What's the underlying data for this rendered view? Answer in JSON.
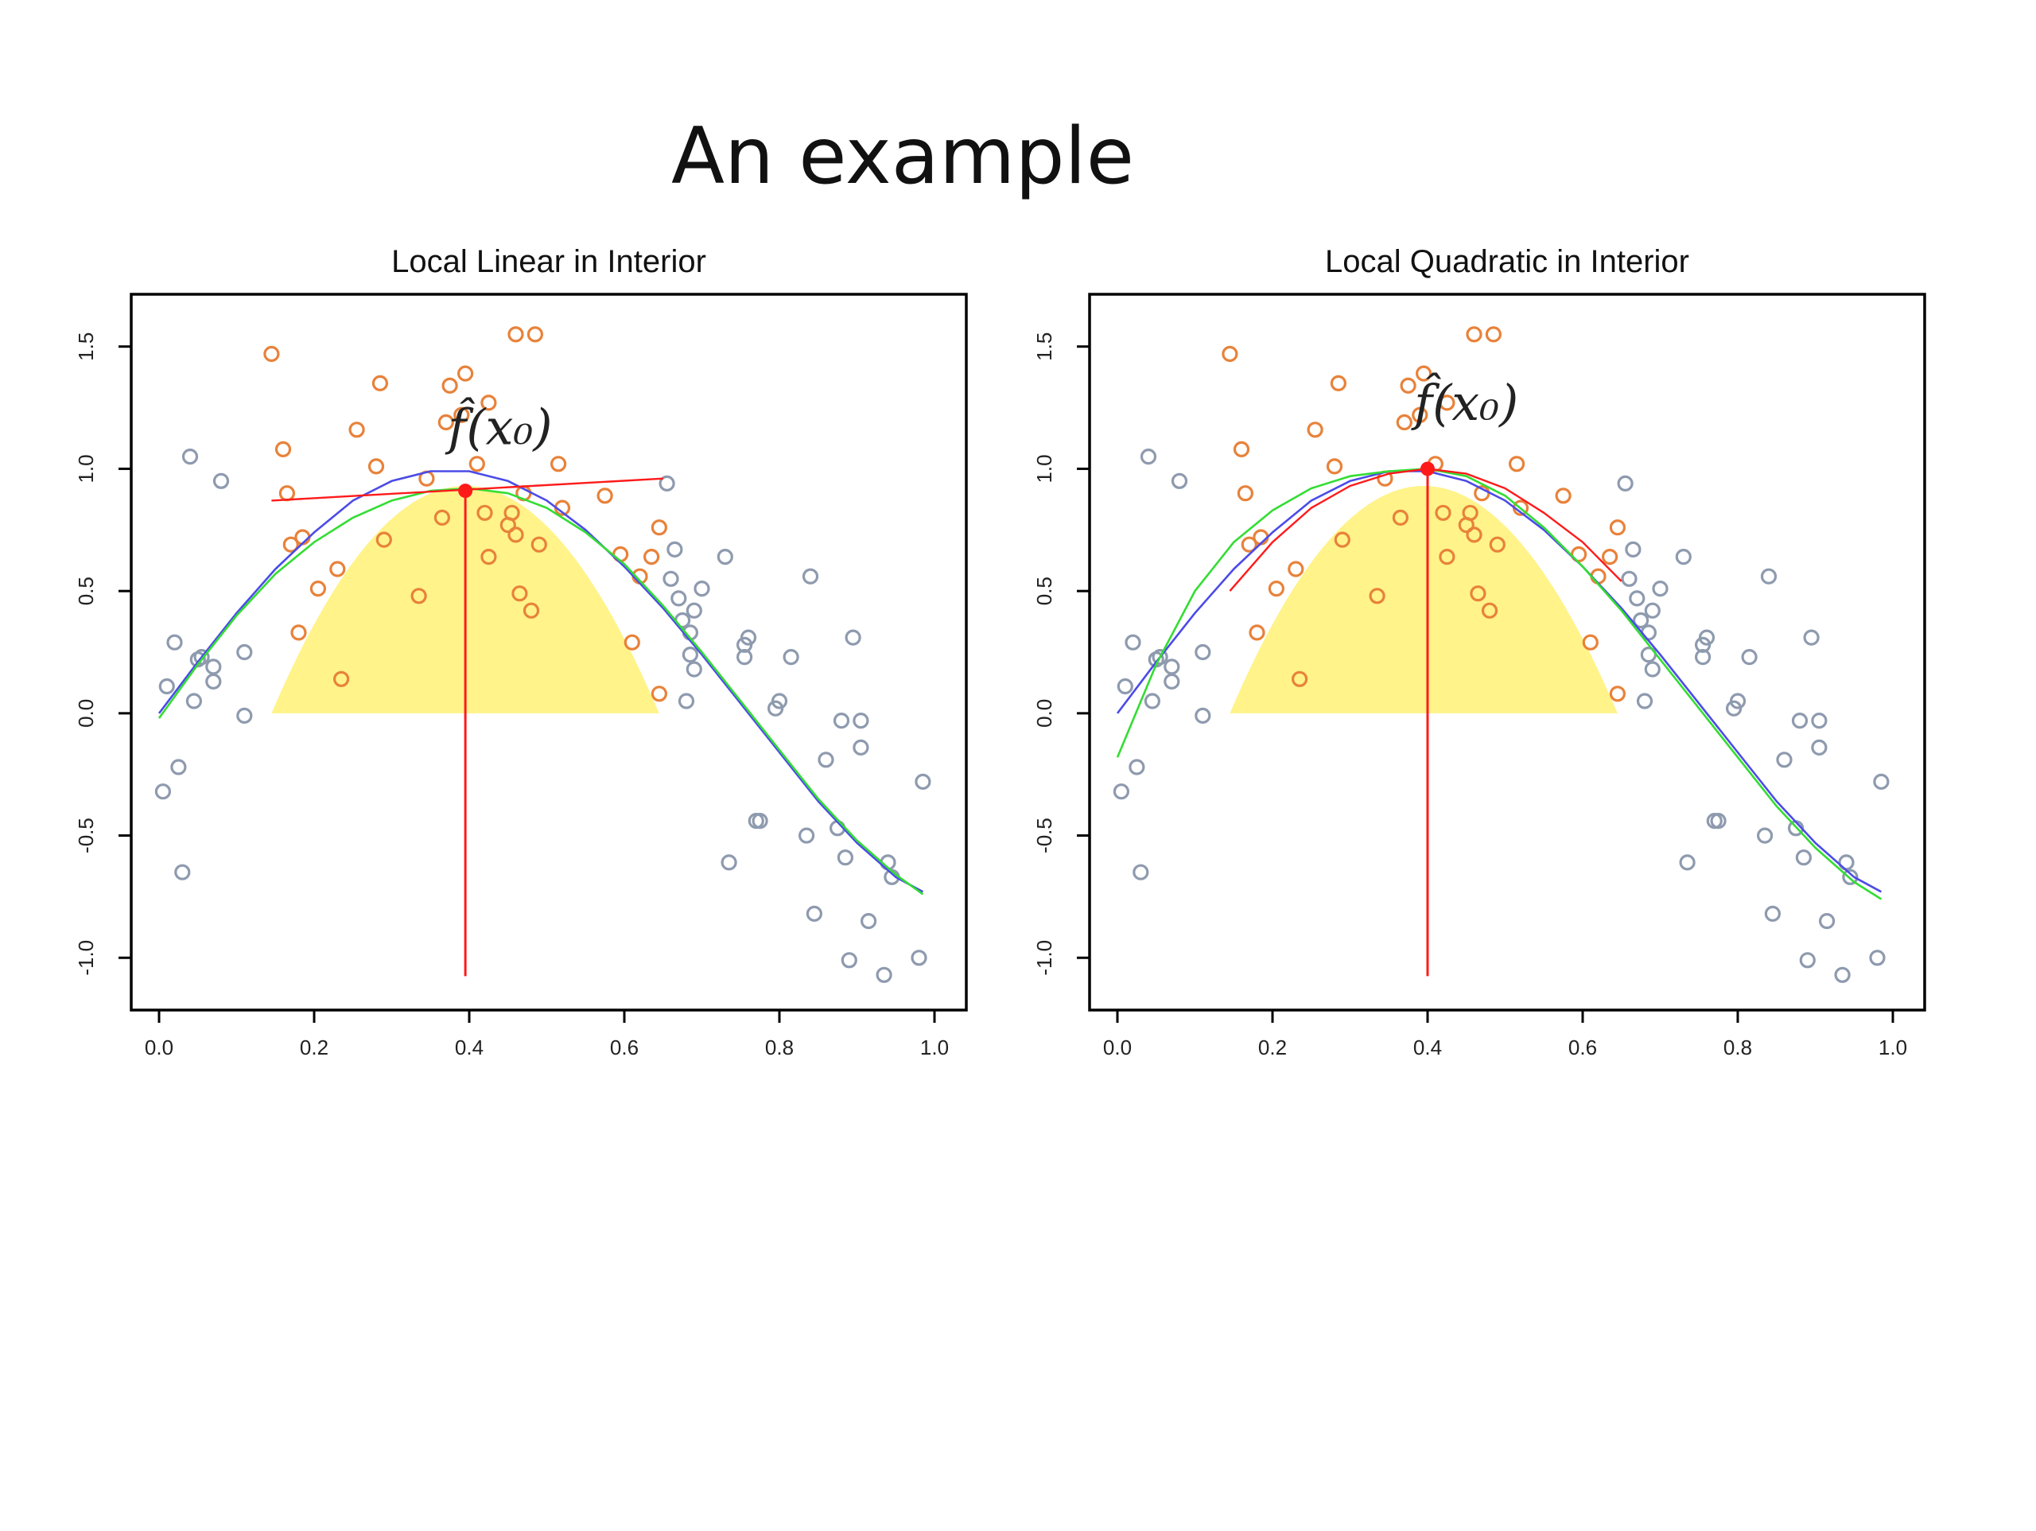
{
  "slide": {
    "title": "An example"
  },
  "colors": {
    "inside_points": "#E8823A",
    "outside_points": "#8E9AAE",
    "true_curve": "#4B4BE8",
    "fitted_curve": "#33DD33",
    "kernel_fill": "#FFF38A",
    "local_fit": "#FF1A1A"
  },
  "chart_data": [
    {
      "type": "scatter",
      "title": "Local Linear in Interior",
      "xlabel": "",
      "ylabel": "",
      "xlim": [
        0,
        1
      ],
      "ylim": [
        -1.1,
        1.6
      ],
      "xticks": [
        "0.0",
        "0.2",
        "0.4",
        "0.6",
        "0.8",
        "1.0"
      ],
      "yticks": [
        "-1.0",
        "-0.5",
        "0.0",
        "0.5",
        "1.0",
        "1.5"
      ],
      "annotation": {
        "text": "f̂(x₀)",
        "x": 0.44,
        "y": 1.1
      },
      "target": {
        "x": 0.395,
        "y": 0.91
      },
      "kernel_window": {
        "x": [
          0.145,
          0.645
        ],
        "peak": 0.93
      },
      "local_fit": {
        "type": "line",
        "x": [
          0.145,
          0.65
        ],
        "y": [
          0.87,
          0.96
        ]
      },
      "true_curve": {
        "x": [
          0.0,
          0.05,
          0.1,
          0.15,
          0.2,
          0.25,
          0.3,
          0.35,
          0.4,
          0.45,
          0.5,
          0.55,
          0.6,
          0.65,
          0.7,
          0.75,
          0.8,
          0.85,
          0.9,
          0.95,
          0.985
        ],
        "y": [
          0.0,
          0.21,
          0.41,
          0.59,
          0.74,
          0.87,
          0.95,
          0.99,
          0.99,
          0.95,
          0.87,
          0.75,
          0.6,
          0.43,
          0.24,
          0.04,
          -0.16,
          -0.36,
          -0.53,
          -0.67,
          -0.73
        ]
      },
      "fitted_curve": {
        "x": [
          0.0,
          0.05,
          0.1,
          0.15,
          0.2,
          0.25,
          0.3,
          0.35,
          0.4,
          0.45,
          0.5,
          0.55,
          0.6,
          0.65,
          0.7,
          0.75,
          0.8,
          0.85,
          0.9,
          0.95,
          0.985
        ],
        "y": [
          -0.02,
          0.2,
          0.4,
          0.57,
          0.7,
          0.8,
          0.87,
          0.91,
          0.92,
          0.9,
          0.84,
          0.74,
          0.61,
          0.44,
          0.25,
          0.05,
          -0.15,
          -0.35,
          -0.52,
          -0.66,
          -0.74
        ]
      },
      "points_inside": [
        [
          0.145,
          1.47
        ],
        [
          0.16,
          1.08
        ],
        [
          0.165,
          0.9
        ],
        [
          0.17,
          0.69
        ],
        [
          0.18,
          0.33
        ],
        [
          0.185,
          0.72
        ],
        [
          0.205,
          0.51
        ],
        [
          0.23,
          0.59
        ],
        [
          0.235,
          0.14
        ],
        [
          0.255,
          1.16
        ],
        [
          0.28,
          1.01
        ],
        [
          0.285,
          1.35
        ],
        [
          0.29,
          0.71
        ],
        [
          0.335,
          0.48
        ],
        [
          0.345,
          0.96
        ],
        [
          0.365,
          0.8
        ],
        [
          0.37,
          1.19
        ],
        [
          0.375,
          1.34
        ],
        [
          0.39,
          1.22
        ],
        [
          0.395,
          1.39
        ],
        [
          0.41,
          1.02
        ],
        [
          0.42,
          0.82
        ],
        [
          0.425,
          1.27
        ],
        [
          0.425,
          0.64
        ],
        [
          0.45,
          0.77
        ],
        [
          0.455,
          0.82
        ],
        [
          0.46,
          1.55
        ],
        [
          0.46,
          0.73
        ],
        [
          0.465,
          0.49
        ],
        [
          0.47,
          0.9
        ],
        [
          0.48,
          0.42
        ],
        [
          0.485,
          1.55
        ],
        [
          0.49,
          0.69
        ],
        [
          0.515,
          1.02
        ],
        [
          0.52,
          0.84
        ],
        [
          0.575,
          0.89
        ],
        [
          0.595,
          0.65
        ],
        [
          0.61,
          0.29
        ],
        [
          0.62,
          0.56
        ],
        [
          0.635,
          0.64
        ],
        [
          0.645,
          0.76
        ],
        [
          0.645,
          0.08
        ]
      ],
      "points_outside": [
        [
          0.005,
          -0.32
        ],
        [
          0.01,
          0.11
        ],
        [
          0.02,
          0.29
        ],
        [
          0.025,
          -0.22
        ],
        [
          0.03,
          -0.65
        ],
        [
          0.04,
          1.05
        ],
        [
          0.045,
          0.05
        ],
        [
          0.05,
          0.22
        ],
        [
          0.055,
          0.23
        ],
        [
          0.07,
          0.19
        ],
        [
          0.07,
          0.13
        ],
        [
          0.08,
          0.95
        ],
        [
          0.11,
          -0.01
        ],
        [
          0.11,
          0.25
        ],
        [
          0.655,
          0.94
        ],
        [
          0.66,
          0.55
        ],
        [
          0.665,
          0.67
        ],
        [
          0.67,
          0.47
        ],
        [
          0.675,
          0.38
        ],
        [
          0.68,
          0.05
        ],
        [
          0.685,
          0.24
        ],
        [
          0.685,
          0.33
        ],
        [
          0.69,
          0.18
        ],
        [
          0.69,
          0.42
        ],
        [
          0.7,
          0.51
        ],
        [
          0.73,
          0.64
        ],
        [
          0.735,
          -0.61
        ],
        [
          0.755,
          0.23
        ],
        [
          0.755,
          0.28
        ],
        [
          0.76,
          0.31
        ],
        [
          0.77,
          -0.44
        ],
        [
          0.775,
          -0.44
        ],
        [
          0.795,
          0.02
        ],
        [
          0.8,
          0.05
        ],
        [
          0.815,
          0.23
        ],
        [
          0.835,
          -0.5
        ],
        [
          0.84,
          0.56
        ],
        [
          0.845,
          -0.82
        ],
        [
          0.86,
          -0.19
        ],
        [
          0.875,
          -0.47
        ],
        [
          0.88,
          -0.03
        ],
        [
          0.885,
          -0.59
        ],
        [
          0.89,
          -1.01
        ],
        [
          0.895,
          0.31
        ],
        [
          0.905,
          -0.03
        ],
        [
          0.905,
          -0.14
        ],
        [
          0.915,
          -0.85
        ],
        [
          0.935,
          -1.07
        ],
        [
          0.94,
          -0.61
        ],
        [
          0.945,
          -0.67
        ],
        [
          0.98,
          -1.0
        ],
        [
          0.985,
          -0.28
        ]
      ]
    },
    {
      "type": "scatter",
      "title": "Local Quadratic in Interior",
      "xlabel": "",
      "ylabel": "",
      "xlim": [
        0,
        1
      ],
      "ylim": [
        -1.1,
        1.6
      ],
      "xticks": [
        "0.0",
        "0.2",
        "0.4",
        "0.6",
        "0.8",
        "1.0"
      ],
      "yticks": [
        "-1.0",
        "-0.5",
        "0.0",
        "0.5",
        "1.0",
        "1.5"
      ],
      "annotation": {
        "text": "f̂(x₀)",
        "x": 0.45,
        "y": 1.2
      },
      "target": {
        "x": 0.4,
        "y": 1.0
      },
      "kernel_window": {
        "x": [
          0.145,
          0.645
        ],
        "peak": 0.93
      },
      "local_fit": {
        "type": "curve",
        "x": [
          0.145,
          0.2,
          0.25,
          0.3,
          0.35,
          0.4,
          0.45,
          0.5,
          0.55,
          0.6,
          0.65
        ],
        "y": [
          0.5,
          0.7,
          0.84,
          0.93,
          0.98,
          1.0,
          0.98,
          0.92,
          0.82,
          0.7,
          0.54
        ]
      },
      "true_curve": {
        "x": [
          0.0,
          0.05,
          0.1,
          0.15,
          0.2,
          0.25,
          0.3,
          0.35,
          0.4,
          0.45,
          0.5,
          0.55,
          0.6,
          0.65,
          0.7,
          0.75,
          0.8,
          0.85,
          0.9,
          0.95,
          0.985
        ],
        "y": [
          0.0,
          0.21,
          0.41,
          0.59,
          0.74,
          0.87,
          0.95,
          0.99,
          0.99,
          0.95,
          0.87,
          0.75,
          0.6,
          0.43,
          0.24,
          0.04,
          -0.16,
          -0.36,
          -0.53,
          -0.67,
          -0.73
        ]
      },
      "fitted_curve": {
        "x": [
          0.0,
          0.05,
          0.1,
          0.15,
          0.2,
          0.25,
          0.3,
          0.35,
          0.4,
          0.45,
          0.5,
          0.55,
          0.6,
          0.65,
          0.7,
          0.75,
          0.8,
          0.85,
          0.9,
          0.95,
          0.985
        ],
        "y": [
          -0.18,
          0.2,
          0.5,
          0.7,
          0.83,
          0.92,
          0.97,
          0.99,
          1.0,
          0.97,
          0.89,
          0.76,
          0.6,
          0.42,
          0.22,
          0.02,
          -0.18,
          -0.38,
          -0.55,
          -0.69,
          -0.76
        ]
      },
      "points_inside": [
        [
          0.145,
          1.47
        ],
        [
          0.16,
          1.08
        ],
        [
          0.165,
          0.9
        ],
        [
          0.17,
          0.69
        ],
        [
          0.18,
          0.33
        ],
        [
          0.185,
          0.72
        ],
        [
          0.205,
          0.51
        ],
        [
          0.23,
          0.59
        ],
        [
          0.235,
          0.14
        ],
        [
          0.255,
          1.16
        ],
        [
          0.28,
          1.01
        ],
        [
          0.285,
          1.35
        ],
        [
          0.29,
          0.71
        ],
        [
          0.335,
          0.48
        ],
        [
          0.345,
          0.96
        ],
        [
          0.365,
          0.8
        ],
        [
          0.37,
          1.19
        ],
        [
          0.375,
          1.34
        ],
        [
          0.39,
          1.22
        ],
        [
          0.395,
          1.39
        ],
        [
          0.41,
          1.02
        ],
        [
          0.42,
          0.82
        ],
        [
          0.425,
          1.27
        ],
        [
          0.425,
          0.64
        ],
        [
          0.45,
          0.77
        ],
        [
          0.455,
          0.82
        ],
        [
          0.46,
          1.55
        ],
        [
          0.46,
          0.73
        ],
        [
          0.465,
          0.49
        ],
        [
          0.47,
          0.9
        ],
        [
          0.48,
          0.42
        ],
        [
          0.485,
          1.55
        ],
        [
          0.49,
          0.69
        ],
        [
          0.515,
          1.02
        ],
        [
          0.52,
          0.84
        ],
        [
          0.575,
          0.89
        ],
        [
          0.595,
          0.65
        ],
        [
          0.61,
          0.29
        ],
        [
          0.62,
          0.56
        ],
        [
          0.635,
          0.64
        ],
        [
          0.645,
          0.76
        ],
        [
          0.645,
          0.08
        ]
      ],
      "points_outside": [
        [
          0.005,
          -0.32
        ],
        [
          0.01,
          0.11
        ],
        [
          0.02,
          0.29
        ],
        [
          0.025,
          -0.22
        ],
        [
          0.03,
          -0.65
        ],
        [
          0.04,
          1.05
        ],
        [
          0.045,
          0.05
        ],
        [
          0.05,
          0.22
        ],
        [
          0.055,
          0.23
        ],
        [
          0.07,
          0.19
        ],
        [
          0.07,
          0.13
        ],
        [
          0.08,
          0.95
        ],
        [
          0.11,
          -0.01
        ],
        [
          0.11,
          0.25
        ],
        [
          0.655,
          0.94
        ],
        [
          0.66,
          0.55
        ],
        [
          0.665,
          0.67
        ],
        [
          0.67,
          0.47
        ],
        [
          0.675,
          0.38
        ],
        [
          0.68,
          0.05
        ],
        [
          0.685,
          0.24
        ],
        [
          0.685,
          0.33
        ],
        [
          0.69,
          0.18
        ],
        [
          0.69,
          0.42
        ],
        [
          0.7,
          0.51
        ],
        [
          0.73,
          0.64
        ],
        [
          0.735,
          -0.61
        ],
        [
          0.755,
          0.23
        ],
        [
          0.755,
          0.28
        ],
        [
          0.76,
          0.31
        ],
        [
          0.77,
          -0.44
        ],
        [
          0.775,
          -0.44
        ],
        [
          0.795,
          0.02
        ],
        [
          0.8,
          0.05
        ],
        [
          0.815,
          0.23
        ],
        [
          0.835,
          -0.5
        ],
        [
          0.84,
          0.56
        ],
        [
          0.845,
          -0.82
        ],
        [
          0.86,
          -0.19
        ],
        [
          0.875,
          -0.47
        ],
        [
          0.88,
          -0.03
        ],
        [
          0.885,
          -0.59
        ],
        [
          0.89,
          -1.01
        ],
        [
          0.895,
          0.31
        ],
        [
          0.905,
          -0.03
        ],
        [
          0.905,
          -0.14
        ],
        [
          0.915,
          -0.85
        ],
        [
          0.935,
          -1.07
        ],
        [
          0.94,
          -0.61
        ],
        [
          0.945,
          -0.67
        ],
        [
          0.98,
          -1.0
        ],
        [
          0.985,
          -0.28
        ]
      ]
    }
  ]
}
